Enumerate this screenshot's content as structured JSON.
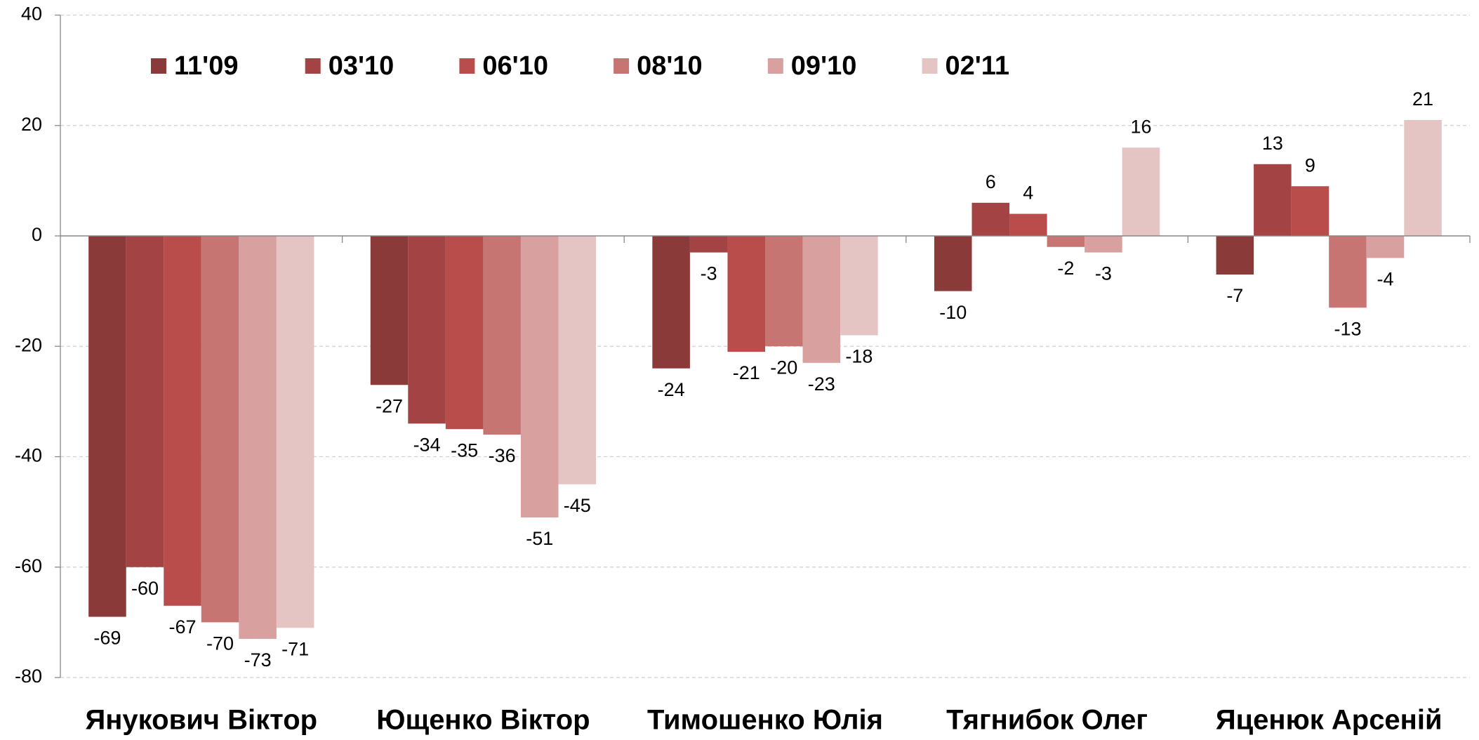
{
  "chart_data": {
    "type": "bar",
    "categories": [
      "Янукович Віктор",
      "Ющенко Віктор",
      "Тимошенко Юлія",
      "Тягнибок Олег",
      "Яценюк Арсеній"
    ],
    "series": [
      {
        "name": "11'09",
        "color": "#8b3a3a",
        "values": [
          -69,
          -27,
          -24,
          -10,
          -7
        ]
      },
      {
        "name": "03'10",
        "color": "#a44343",
        "values": [
          -60,
          -34,
          -3,
          6,
          13
        ]
      },
      {
        "name": "06'10",
        "color": "#b84d4b",
        "values": [
          -67,
          -35,
          -21,
          4,
          9
        ]
      },
      {
        "name": "08'10",
        "color": "#c77573",
        "values": [
          -70,
          -36,
          -20,
          -2,
          -13
        ]
      },
      {
        "name": "09'10",
        "color": "#d8a1a0",
        "values": [
          -73,
          -51,
          -23,
          -3,
          -4
        ]
      },
      {
        "name": "02'11",
        "color": "#e5c4c4",
        "values": [
          -71,
          -45,
          -18,
          16,
          21
        ]
      }
    ],
    "ylim": [
      -80,
      40
    ],
    "yticks": [
      -80,
      -60,
      -40,
      -20,
      0,
      20,
      40
    ],
    "grid": true,
    "legend": "top"
  }
}
